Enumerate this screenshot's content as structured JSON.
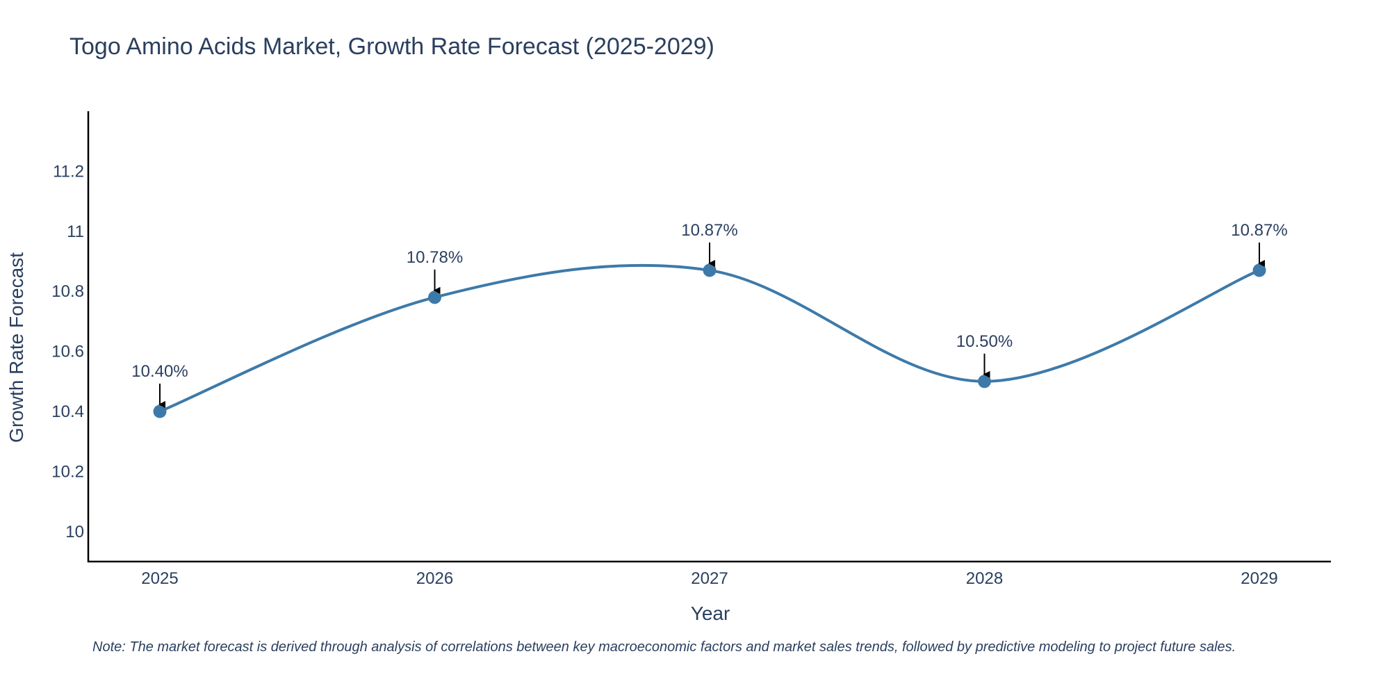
{
  "chart_data": {
    "type": "line",
    "title": "Togo Amino Acids Market, Growth Rate Forecast (2025-2029)",
    "xlabel": "Year",
    "ylabel": "Growth Rate Forecast",
    "categories": [
      "2025",
      "2026",
      "2027",
      "2028",
      "2029"
    ],
    "series": [
      {
        "name": "Growth Rate Forecast",
        "values": [
          10.4,
          10.78,
          10.87,
          10.5,
          10.87
        ],
        "labels": [
          "10.40%",
          "10.78%",
          "10.87%",
          "10.50%",
          "10.87%"
        ],
        "color": "#3d7aa9"
      }
    ],
    "ylim": [
      9.9,
      11.4
    ],
    "yticks": [
      10,
      10.2,
      10.4,
      10.6,
      10.8,
      11,
      11.2
    ],
    "ytick_labels": [
      "10",
      "10.2",
      "10.4",
      "10.6",
      "10.8",
      "11",
      "11.2"
    ],
    "grid": false,
    "line_shape": "spline"
  },
  "note": "Note: The market forecast is derived through analysis of correlations between key macroeconomic factors and market sales trends, followed by predictive modeling to project future sales.",
  "colors": {
    "line": "#3d7aa9",
    "axis": "#000000",
    "text": "#2a3f5f"
  }
}
